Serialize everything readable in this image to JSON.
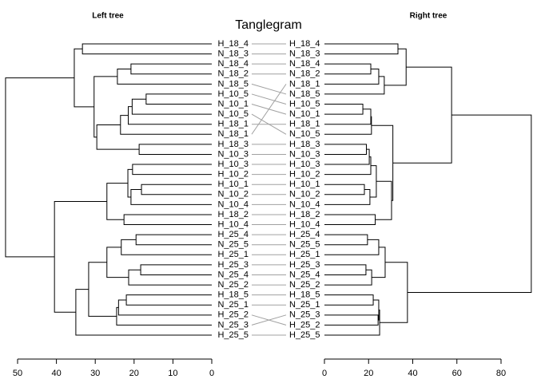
{
  "chart_data": {
    "type": "tanglegram",
    "title": "Tanglegram",
    "left_title": "Left tree",
    "right_title": "Right tree",
    "left_xlim": [
      50,
      0
    ],
    "left_xticks": [
      50,
      40,
      30,
      20,
      10,
      0
    ],
    "right_xlim": [
      0,
      80
    ],
    "right_xticks": [
      0,
      20,
      40,
      60,
      80
    ],
    "line_color": "#000000",
    "connector_color": "#a0a0a0",
    "left_tree": {
      "height": 53.1,
      "children": [
        {
          "height": 35.4,
          "children": [
            {
              "height": 33.3,
              "children": [
                "H_18_4",
                "N_18_3"
              ]
            },
            {
              "height": 30.3,
              "children": [
                {
                  "height": 24.3,
                  "children": [
                    {
                      "height": 20.8,
                      "children": [
                        "N_18_4",
                        "N_18_2"
                      ]
                    },
                    "N_18_5"
                  ]
                },
                {
                  "height": 29.6,
                  "children": [
                    {
                      "height": 23.5,
                      "children": [
                        {
                          "height": 21.5,
                          "children": [
                            {
                              "height": 20.5,
                              "children": [
                                {
                                  "height": 16.9,
                                  "children": [
                                    "H_10_5",
                                    "N_10_1"
                                  ]
                                },
                                "N_10_5"
                              ]
                            },
                            "H_18_1"
                          ]
                        },
                        "N_18_1"
                      ]
                    },
                    {
                      "height": 18.7,
                      "children": [
                        "H_18_3",
                        "N_10_3"
                      ]
                    }
                  ]
                }
              ]
            }
          ]
        },
        {
          "height": 40.5,
          "children": [
            {
              "height": 27.0,
              "children": [
                {
                  "height": 21.6,
                  "children": [
                    {
                      "height": 20.4,
                      "children": [
                        "H_10_3",
                        "H_10_2"
                      ]
                    },
                    {
                      "height": 20.8,
                      "children": [
                        {
                          "height": 18.1,
                          "children": [
                            "H_10_1",
                            "N_10_2"
                          ]
                        },
                        "N_10_4"
                      ]
                    }
                  ]
                },
                {
                  "height": 22.6,
                  "children": [
                    "H_18_2",
                    "H_10_4"
                  ]
                }
              ]
            },
            {
              "height": 35.0,
              "children": [
                {
                  "height": 31.7,
                  "children": [
                    {
                      "height": 27.0,
                      "children": [
                        {
                          "height": 23.3,
                          "children": [
                            {
                              "height": 19.5,
                              "children": [
                                "H_25_4",
                                "N_25_5"
                              ]
                            },
                            "H_25_1"
                          ]
                        },
                        {
                          "height": 21.4,
                          "children": [
                            {
                              "height": 18.3,
                              "children": [
                                "H_25_3",
                                "N_25_4"
                              ]
                            },
                            "N_25_2"
                          ]
                        }
                      ]
                    },
                    {
                      "height": 24.5,
                      "children": [
                        {
                          "height": 24.0,
                          "children": [
                            {
                              "height": 22.0,
                              "children": [
                                "H_18_5",
                                "N_25_1"
                              ]
                            },
                            "H_25_2"
                          ]
                        },
                        "N_25_3"
                      ]
                    }
                  ]
                },
                "H_25_5"
              ]
            }
          ]
        }
      ]
    },
    "right_tree": {
      "height": 93.7,
      "children": [
        {
          "height": 57.6,
          "children": [
            {
              "height": 37.0,
              "children": [
                {
                  "height": 33.3,
                  "children": [
                    "H_18_4",
                    "N_18_3"
                  ]
                },
                {
                  "height": 27.1,
                  "children": [
                    {
                      "height": 24.6,
                      "children": [
                        {
                          "height": 21.0,
                          "children": [
                            "N_18_4",
                            "N_18_2"
                          ]
                        },
                        "N_18_1"
                      ]
                    },
                    "N_18_5"
                  ]
                }
              ]
            },
            {
              "height": 31.0,
              "children": [
                {
                  "height": 21.3,
                  "children": [
                    {
                      "height": 21.0,
                      "children": [
                        {
                          "height": 17.4,
                          "children": [
                            "H_10_5",
                            "N_10_1"
                          ]
                        },
                        "H_18_1"
                      ]
                    },
                    "N_10_5"
                  ]
                },
                {
                  "height": 30.4,
                  "children": [
                    {
                      "height": 23.5,
                      "children": [
                        {
                          "height": 21.0,
                          "children": [
                            {
                              "height": 20.3,
                              "children": [
                                {
                                  "height": 19.0,
                                  "children": [
                                    "H_18_3",
                                    "N_10_3"
                                  ]
                                },
                                "H_10_3"
                              ]
                            },
                            "H_10_2"
                          ]
                        },
                        {
                          "height": 20.6,
                          "children": [
                            {
                              "height": 18.1,
                              "children": [
                                "H_10_1",
                                "N_10_2"
                              ]
                            },
                            "N_10_4"
                          ]
                        }
                      ]
                    },
                    {
                      "height": 23.0,
                      "children": [
                        "H_18_2",
                        "H_10_4"
                      ]
                    }
                  ]
                }
              ]
            }
          ]
        },
        {
          "height": 37.6,
          "children": [
            {
              "height": 27.5,
              "children": [
                {
                  "height": 24.6,
                  "children": [
                    {
                      "height": 19.5,
                      "children": [
                        "H_25_4",
                        "N_25_5"
                      ]
                    },
                    "H_25_1"
                  ]
                },
                {
                  "height": 21.4,
                  "children": [
                    {
                      "height": 18.8,
                      "children": [
                        "H_25_3",
                        "N_25_4"
                      ]
                    },
                    "N_25_2"
                  ]
                }
              ]
            },
            {
              "height": 25.0,
              "children": [
                {
                  "height": 24.6,
                  "children": [
                    {
                      "height": 22.1,
                      "children": [
                        "H_18_5",
                        "N_25_1"
                      ]
                    },
                    {
                      "height": 24.3,
                      "children": [
                        "N_25_3",
                        "H_25_2"
                      ]
                    }
                  ]
                },
                "H_25_5"
              ]
            }
          ]
        }
      ]
    }
  }
}
